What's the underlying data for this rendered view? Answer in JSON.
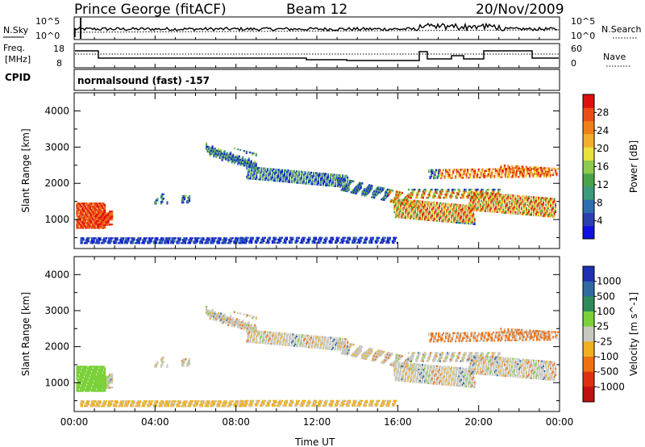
{
  "header": {
    "station": "Prince George (fitACF)",
    "beam": "Beam 12",
    "date": "20/Nov/2009"
  },
  "strip_panels": {
    "nsky_label": "N.Sky",
    "nsearch_label": "N.Search",
    "freq_label_line1": "Freq.",
    "freq_label_line2": "[MHz]",
    "nave_label": "Nave",
    "cpid_label": "CPID",
    "cpid_value": "normalsound (fast) -157",
    "noise_ticks_left": [
      "10^5",
      "10^0"
    ],
    "noise_ticks_right": [
      "10^5",
      "10^0"
    ],
    "freq_ticks": [
      "18",
      "8"
    ],
    "nave_ticks": [
      "60",
      "0"
    ]
  },
  "chart_data": [
    {
      "type": "heatmap",
      "panel": "power",
      "xlabel": "",
      "ylabel": "Slant Range [km]",
      "xlim": [
        0,
        24
      ],
      "ylim": [
        200,
        4500
      ],
      "xticks": [
        "00:00",
        "04:00",
        "08:00",
        "12:00",
        "16:00",
        "20:00",
        "00:00"
      ],
      "yticks": [
        "1000",
        "2000",
        "3000",
        "4000"
      ],
      "colorbar": {
        "label": "Power [dB]",
        "ticks": [
          "4",
          "8",
          "12",
          "16",
          "20",
          "24",
          "28"
        ],
        "colors": [
          "#1010e0",
          "#2e3fb0",
          "#2f6fae",
          "#3d9a7c",
          "#4aa34a",
          "#8ecb4c",
          "#e7e33b",
          "#f2b02a",
          "#ef7f1a",
          "#ec4d17",
          "#e01010"
        ]
      }
    },
    {
      "type": "heatmap",
      "panel": "velocity",
      "xlabel": "Time UT",
      "ylabel": "Slant Range [km]",
      "xlim": [
        0,
        24
      ],
      "ylim": [
        200,
        4500
      ],
      "xticks": [
        "00:00",
        "04:00",
        "08:00",
        "12:00",
        "16:00",
        "20:00",
        "00:00"
      ],
      "yticks": [
        "1000",
        "2000",
        "3000",
        "4000"
      ],
      "colorbar": {
        "label": "Velocity [m s^-1]",
        "ticks": [
          "1000",
          "500",
          "100",
          "25",
          "-25",
          "-100",
          "-500",
          "-1000"
        ],
        "colors": [
          "#2030b0",
          "#2f6aa0",
          "#2f8a5a",
          "#7ad13a",
          "#c8c8c0",
          "#f0b020",
          "#f07010",
          "#e03010",
          "#c01010"
        ]
      }
    }
  ]
}
